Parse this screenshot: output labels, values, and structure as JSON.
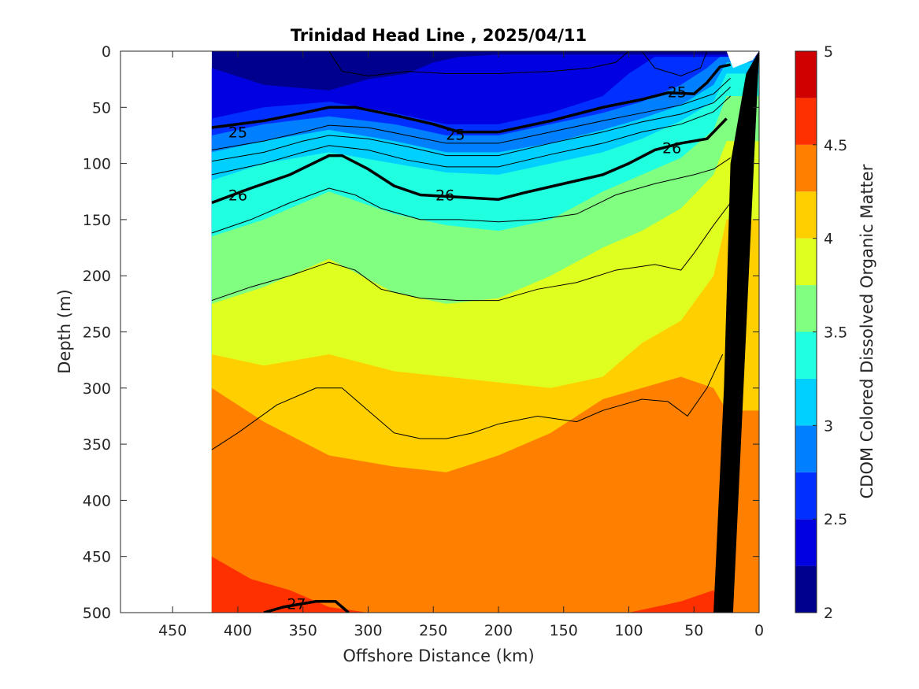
{
  "chart_data": {
    "type": "heatmap",
    "title": "Trinidad Head Line , 2025/04/11",
    "xlabel": "Offshore Distance (km)",
    "ylabel": "Depth (m)",
    "colorbar_label": "CDOM Colored Dissolved Organic Matter",
    "xlim": [
      490,
      0
    ],
    "ylim": [
      500,
      0
    ],
    "x_ticks": [
      "450",
      "400",
      "350",
      "300",
      "250",
      "200",
      "150",
      "100",
      "50",
      "0"
    ],
    "y_ticks": [
      "0",
      "50",
      "100",
      "150",
      "200",
      "250",
      "300",
      "350",
      "400",
      "450",
      "500"
    ],
    "colorbar": {
      "range": [
        2,
        5
      ],
      "ticks": [
        "2",
        "2.5",
        "3",
        "3.5",
        "4",
        "4.5",
        "5"
      ],
      "levels": [
        2.0,
        2.25,
        2.5,
        2.75,
        3.0,
        3.25,
        3.5,
        3.75,
        4.0,
        4.25,
        4.5,
        4.75,
        5.0
      ],
      "colors": [
        "#00008f",
        "#0000e0",
        "#0030ff",
        "#0080ff",
        "#00d0ff",
        "#20ffdf",
        "#80ff80",
        "#dfff20",
        "#ffcf00",
        "#ff8000",
        "#ff3000",
        "#cf0000"
      ]
    },
    "data_extent_km": [
      420,
      0
    ],
    "cdom_bands": [
      {
        "level": 2.25,
        "depth_by_x": [
          [
            420,
            15
          ],
          [
            380,
            30
          ],
          [
            330,
            35
          ],
          [
            300,
            25
          ],
          [
            270,
            20
          ],
          [
            250,
            10
          ],
          [
            230,
            5
          ],
          [
            200,
            3
          ]
        ]
      },
      {
        "level": 2.5,
        "depth_by_x": [
          [
            420,
            60
          ],
          [
            380,
            50
          ],
          [
            330,
            45
          ],
          [
            280,
            55
          ],
          [
            240,
            65
          ],
          [
            200,
            65
          ],
          [
            160,
            55
          ],
          [
            120,
            40
          ],
          [
            100,
            20
          ],
          [
            80,
            5
          ]
        ]
      },
      {
        "level": 2.75,
        "depth_by_x": [
          [
            420,
            75
          ],
          [
            380,
            65
          ],
          [
            330,
            58
          ],
          [
            280,
            65
          ],
          [
            240,
            75
          ],
          [
            200,
            75
          ],
          [
            160,
            65
          ],
          [
            120,
            55
          ],
          [
            90,
            45
          ],
          [
            60,
            30
          ],
          [
            40,
            15
          ],
          [
            30,
            5
          ]
        ]
      },
      {
        "level": 3.0,
        "depth_by_x": [
          [
            420,
            90
          ],
          [
            380,
            80
          ],
          [
            330,
            70
          ],
          [
            280,
            80
          ],
          [
            240,
            90
          ],
          [
            200,
            90
          ],
          [
            160,
            82
          ],
          [
            120,
            70
          ],
          [
            90,
            60
          ],
          [
            60,
            48
          ],
          [
            35,
            30
          ],
          [
            25,
            10
          ]
        ]
      },
      {
        "level": 3.25,
        "depth_by_x": [
          [
            420,
            115
          ],
          [
            380,
            100
          ],
          [
            330,
            90
          ],
          [
            280,
            100
          ],
          [
            240,
            108
          ],
          [
            200,
            110
          ],
          [
            160,
            100
          ],
          [
            120,
            90
          ],
          [
            90,
            78
          ],
          [
            60,
            62
          ],
          [
            35,
            45
          ],
          [
            25,
            20
          ]
        ]
      },
      {
        "level": 3.5,
        "depth_by_x": [
          [
            420,
            165
          ],
          [
            380,
            150
          ],
          [
            330,
            125
          ],
          [
            280,
            145
          ],
          [
            240,
            155
          ],
          [
            200,
            160
          ],
          [
            160,
            150
          ],
          [
            120,
            125
          ],
          [
            90,
            110
          ],
          [
            60,
            95
          ],
          [
            35,
            70
          ],
          [
            25,
            40
          ]
        ]
      },
      {
        "level": 3.75,
        "depth_by_x": [
          [
            420,
            225
          ],
          [
            380,
            210
          ],
          [
            330,
            185
          ],
          [
            280,
            215
          ],
          [
            240,
            225
          ],
          [
            200,
            220
          ],
          [
            160,
            200
          ],
          [
            120,
            175
          ],
          [
            90,
            160
          ],
          [
            60,
            140
          ],
          [
            35,
            110
          ],
          [
            25,
            80
          ]
        ]
      },
      {
        "level": 4.0,
        "depth_by_x": [
          [
            420,
            270
          ],
          [
            380,
            280
          ],
          [
            330,
            270
          ],
          [
            280,
            285
          ],
          [
            240,
            290
          ],
          [
            200,
            295
          ],
          [
            160,
            300
          ],
          [
            120,
            290
          ],
          [
            90,
            260
          ],
          [
            60,
            240
          ],
          [
            35,
            200
          ],
          [
            25,
            150
          ]
        ]
      },
      {
        "level": 4.25,
        "depth_by_x": [
          [
            420,
            300
          ],
          [
            380,
            330
          ],
          [
            330,
            360
          ],
          [
            280,
            370
          ],
          [
            240,
            375
          ],
          [
            200,
            360
          ],
          [
            160,
            340
          ],
          [
            120,
            310
          ],
          [
            90,
            300
          ],
          [
            60,
            290
          ],
          [
            35,
            300
          ],
          [
            25,
            320
          ]
        ]
      },
      {
        "level": 4.5,
        "depth_by_x": [
          [
            420,
            450
          ],
          [
            390,
            470
          ],
          [
            360,
            480
          ],
          [
            330,
            495
          ],
          [
            300,
            500
          ],
          [
            200,
            500
          ],
          [
            100,
            500
          ],
          [
            60,
            490
          ],
          [
            35,
            480
          ],
          [
            25,
            500
          ]
        ]
      }
    ],
    "density_contours": [
      {
        "level": 25,
        "labeled": true,
        "points": [
          [
            420,
            68
          ],
          [
            380,
            62
          ],
          [
            350,
            55
          ],
          [
            330,
            50
          ],
          [
            310,
            50
          ],
          [
            280,
            57
          ],
          [
            250,
            65
          ],
          [
            230,
            72
          ],
          [
            200,
            72
          ],
          [
            160,
            62
          ],
          [
            120,
            50
          ],
          [
            90,
            43
          ],
          [
            70,
            37
          ],
          [
            50,
            38
          ],
          [
            40,
            28
          ],
          [
            30,
            14
          ],
          [
            22,
            12
          ]
        ]
      },
      {
        "level": 26,
        "labeled": true,
        "points": [
          [
            420,
            135
          ],
          [
            390,
            122
          ],
          [
            360,
            110
          ],
          [
            330,
            93
          ],
          [
            320,
            93
          ],
          [
            300,
            105
          ],
          [
            280,
            120
          ],
          [
            260,
            128
          ],
          [
            230,
            130
          ],
          [
            200,
            132
          ],
          [
            180,
            126
          ],
          [
            150,
            118
          ],
          [
            120,
            110
          ],
          [
            100,
            100
          ],
          [
            80,
            88
          ],
          [
            60,
            82
          ],
          [
            50,
            80
          ],
          [
            40,
            78
          ],
          [
            25,
            60
          ]
        ]
      },
      {
        "level": 27,
        "labeled": true,
        "points": [
          [
            380,
            500
          ],
          [
            365,
            495
          ],
          [
            340,
            490
          ],
          [
            325,
            490
          ],
          [
            315,
            500
          ]
        ]
      }
    ],
    "minor_contours": [
      [
        [
          420,
          88
        ],
        [
          380,
          80
        ],
        [
          350,
          72
        ],
        [
          330,
          66
        ],
        [
          300,
          68
        ],
        [
          270,
          75
        ],
        [
          240,
          82
        ],
        [
          200,
          82
        ],
        [
          160,
          72
        ],
        [
          120,
          62
        ],
        [
          90,
          55
        ],
        [
          60,
          48
        ],
        [
          35,
          38
        ],
        [
          22,
          24
        ]
      ],
      [
        [
          420,
          98
        ],
        [
          380,
          90
        ],
        [
          350,
          80
        ],
        [
          330,
          75
        ],
        [
          300,
          78
        ],
        [
          270,
          85
        ],
        [
          240,
          93
        ],
        [
          200,
          93
        ],
        [
          160,
          82
        ],
        [
          120,
          72
        ],
        [
          90,
          63
        ],
        [
          60,
          56
        ],
        [
          35,
          46
        ],
        [
          22,
          32
        ]
      ],
      [
        [
          420,
          110
        ],
        [
          380,
          100
        ],
        [
          350,
          90
        ],
        [
          330,
          84
        ],
        [
          300,
          88
        ],
        [
          270,
          97
        ],
        [
          240,
          103
        ],
        [
          200,
          103
        ],
        [
          160,
          92
        ],
        [
          120,
          82
        ],
        [
          90,
          72
        ],
        [
          60,
          65
        ],
        [
          35,
          54
        ],
        [
          22,
          40
        ]
      ],
      [
        [
          420,
          162
        ],
        [
          390,
          150
        ],
        [
          360,
          135
        ],
        [
          330,
          122
        ],
        [
          310,
          128
        ],
        [
          290,
          140
        ],
        [
          260,
          150
        ],
        [
          230,
          150
        ],
        [
          200,
          152
        ],
        [
          170,
          150
        ],
        [
          140,
          145
        ],
        [
          110,
          128
        ],
        [
          80,
          118
        ],
        [
          50,
          110
        ],
        [
          35,
          105
        ],
        [
          22,
          95
        ]
      ],
      [
        [
          420,
          222
        ],
        [
          390,
          210
        ],
        [
          360,
          200
        ],
        [
          330,
          188
        ],
        [
          310,
          195
        ],
        [
          290,
          212
        ],
        [
          260,
          220
        ],
        [
          230,
          222
        ],
        [
          200,
          222
        ],
        [
          170,
          212
        ],
        [
          140,
          206
        ],
        [
          110,
          195
        ],
        [
          80,
          190
        ],
        [
          60,
          195
        ],
        [
          50,
          180
        ],
        [
          35,
          155
        ],
        [
          22,
          135
        ]
      ],
      [
        [
          420,
          355
        ],
        [
          400,
          340
        ],
        [
          370,
          315
        ],
        [
          340,
          300
        ],
        [
          320,
          300
        ],
        [
          300,
          320
        ],
        [
          280,
          340
        ],
        [
          260,
          345
        ],
        [
          240,
          345
        ],
        [
          220,
          340
        ],
        [
          200,
          332
        ],
        [
          170,
          325
        ],
        [
          140,
          330
        ],
        [
          120,
          320
        ],
        [
          90,
          310
        ],
        [
          70,
          312
        ],
        [
          55,
          325
        ],
        [
          40,
          300
        ],
        [
          28,
          270
        ]
      ],
      [
        [
          330,
          0
        ],
        [
          320,
          18
        ],
        [
          300,
          22
        ],
        [
          270,
          18
        ],
        [
          240,
          20
        ],
        [
          200,
          20
        ],
        [
          160,
          18
        ],
        [
          130,
          15
        ],
        [
          110,
          10
        ],
        [
          100,
          0
        ]
      ],
      [
        [
          90,
          0
        ],
        [
          80,
          15
        ],
        [
          60,
          22
        ],
        [
          45,
          15
        ],
        [
          40,
          0
        ]
      ]
    ],
    "contour_labels": [
      {
        "text": "25",
        "x": 400,
        "depth": 72
      },
      {
        "text": "25",
        "x": 233,
        "depth": 74
      },
      {
        "text": "25",
        "x": 63,
        "depth": 36
      },
      {
        "text": "26",
        "x": 400,
        "depth": 128
      },
      {
        "text": "26",
        "x": 241,
        "depth": 128
      },
      {
        "text": "26",
        "x": 67,
        "depth": 86
      },
      {
        "text": "27",
        "x": 355,
        "depth": 492
      }
    ],
    "bathymetry_polygon": [
      [
        0,
        0
      ],
      [
        20,
        500
      ],
      [
        35,
        500
      ],
      [
        27,
        300
      ],
      [
        22,
        100
      ],
      [
        10,
        20
      ],
      [
        0,
        0
      ]
    ]
  }
}
